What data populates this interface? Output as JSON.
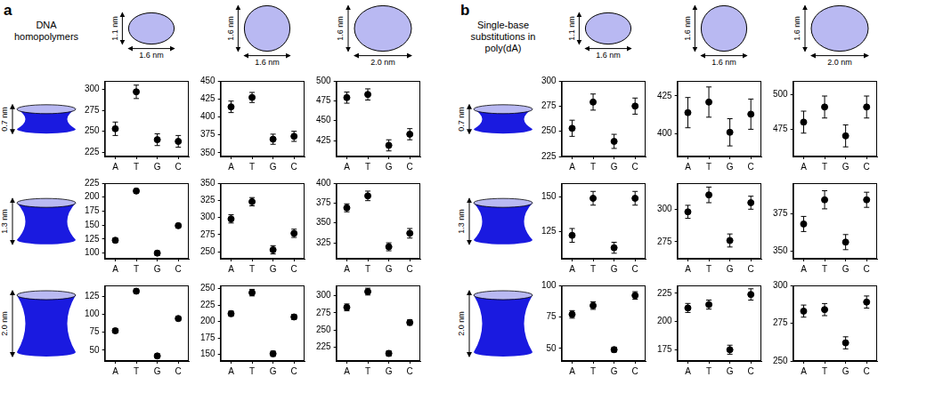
{
  "panels": [
    {
      "label": "a",
      "heading": "DNA homopolymers",
      "columns": [
        {
          "height": "1.1 nm",
          "width": "1.6 nm"
        },
        {
          "height": "1.6 nm",
          "width": "1.6 nm"
        },
        {
          "height": "1.6 nm",
          "width": "2.0 nm"
        }
      ],
      "rows": [
        "0.7 nm",
        "1.3 nm",
        "2.0 nm"
      ]
    },
    {
      "label": "b",
      "heading": "Single-base substitutions in poly(dA)",
      "columns": [
        {
          "height": "1.1 nm",
          "width": "1.6 nm"
        },
        {
          "height": "1.6 nm",
          "width": "1.6 nm"
        },
        {
          "height": "1.6 nm",
          "width": "2.0 nm"
        }
      ],
      "rows": [
        "0.7 nm",
        "1.3 nm",
        "2.0 nm"
      ]
    }
  ],
  "chart_data": [
    {
      "type": "scatter",
      "categories": [
        "A",
        "T",
        "G",
        "C"
      ],
      "values": [
        253,
        297,
        240,
        238
      ],
      "errors": [
        8,
        8,
        7,
        7
      ],
      "ylim": [
        220,
        310
      ],
      "yticks": [
        225,
        250,
        275,
        300
      ],
      "color": "#000000",
      "marker": "circle",
      "grid": false
    },
    {
      "type": "scatter",
      "categories": [
        "A",
        "T",
        "G",
        "C"
      ],
      "values": [
        414,
        427,
        369,
        373
      ],
      "errors": [
        8,
        7,
        7,
        7
      ],
      "ylim": [
        345,
        450
      ],
      "yticks": [
        350,
        375,
        400,
        425,
        450
      ],
      "color": "#000000",
      "marker": "circle",
      "grid": false
    },
    {
      "type": "scatter",
      "categories": [
        "A",
        "T",
        "G",
        "C"
      ],
      "values": [
        479,
        483,
        419,
        433
      ],
      "errors": [
        7,
        7,
        7,
        7
      ],
      "ylim": [
        405,
        500
      ],
      "yticks": [
        425,
        450,
        475,
        500
      ],
      "color": "#000000",
      "marker": "circle",
      "grid": false
    },
    {
      "type": "scatter",
      "categories": [
        "A",
        "T",
        "G",
        "C"
      ],
      "values": [
        123,
        211,
        100,
        149
      ],
      "errors": [
        4,
        4,
        4,
        4
      ],
      "ylim": [
        90,
        225
      ],
      "yticks": [
        100,
        125,
        150,
        175,
        200,
        225
      ],
      "color": "#000000",
      "marker": "circle",
      "grid": false
    },
    {
      "type": "scatter",
      "categories": [
        "A",
        "T",
        "G",
        "C"
      ],
      "values": [
        298,
        323,
        253,
        277
      ],
      "errors": [
        6,
        6,
        6,
        6
      ],
      "ylim": [
        240,
        350
      ],
      "yticks": [
        250,
        275,
        300,
        325,
        350
      ],
      "color": "#000000",
      "marker": "circle",
      "grid": false
    },
    {
      "type": "scatter",
      "categories": [
        "A",
        "T",
        "G",
        "C"
      ],
      "values": [
        369,
        384,
        320,
        337
      ],
      "errors": [
        5,
        6,
        5,
        6
      ],
      "ylim": [
        305,
        400
      ],
      "yticks": [
        325,
        350,
        375,
        400
      ],
      "color": "#000000",
      "marker": "circle",
      "grid": false
    },
    {
      "type": "scatter",
      "categories": [
        "A",
        "T",
        "G",
        "C"
      ],
      "values": [
        77,
        132,
        42,
        94
      ],
      "errors": [
        3,
        3,
        3,
        3
      ],
      "ylim": [
        35,
        140
      ],
      "yticks": [
        50,
        75,
        100,
        125
      ],
      "color": "#000000",
      "marker": "circle",
      "grid": false
    },
    {
      "type": "scatter",
      "categories": [
        "A",
        "T",
        "G",
        "C"
      ],
      "values": [
        212,
        244,
        151,
        207
      ],
      "errors": [
        4,
        5,
        4,
        4
      ],
      "ylim": [
        140,
        255
      ],
      "yticks": [
        150,
        175,
        200,
        225,
        250
      ],
      "color": "#000000",
      "marker": "circle",
      "grid": false
    },
    {
      "type": "scatter",
      "categories": [
        "A",
        "T",
        "G",
        "C"
      ],
      "values": [
        283,
        306,
        216,
        261
      ],
      "errors": [
        5,
        5,
        4,
        4
      ],
      "ylim": [
        205,
        315
      ],
      "yticks": [
        225,
        250,
        275,
        300
      ],
      "color": "#000000",
      "marker": "circle",
      "grid": false
    },
    {
      "type": "scatter",
      "categories": [
        "A",
        "T",
        "G",
        "C"
      ],
      "values": [
        253,
        279,
        240,
        275
      ],
      "errors": [
        8,
        8,
        7,
        8
      ],
      "ylim": [
        225,
        300
      ],
      "yticks": [
        225,
        250,
        275,
        300
      ],
      "color": "#000000",
      "marker": "circle",
      "grid": false
    },
    {
      "type": "scatter",
      "categories": [
        "A",
        "T",
        "G",
        "C"
      ],
      "values": [
        414,
        421,
        401,
        413
      ],
      "errors": [
        10,
        10,
        9,
        10
      ],
      "ylim": [
        385,
        435
      ],
      "yticks": [
        400,
        425
      ],
      "color": "#000000",
      "marker": "circle",
      "grid": false
    },
    {
      "type": "scatter",
      "categories": [
        "A",
        "T",
        "G",
        "C"
      ],
      "values": [
        480,
        491,
        470,
        491
      ],
      "errors": [
        8,
        8,
        8,
        8
      ],
      "ylim": [
        455,
        510
      ],
      "yticks": [
        475,
        500
      ],
      "color": "#000000",
      "marker": "circle",
      "grid": false
    },
    {
      "type": "scatter",
      "categories": [
        "A",
        "T",
        "G",
        "C"
      ],
      "values": [
        122,
        149,
        113,
        149
      ],
      "errors": [
        5,
        5,
        4,
        5
      ],
      "ylim": [
        105,
        160
      ],
      "yticks": [
        125,
        150
      ],
      "color": "#000000",
      "marker": "circle",
      "grid": false
    },
    {
      "type": "scatter",
      "categories": [
        "A",
        "T",
        "G",
        "C"
      ],
      "values": [
        298,
        311,
        276,
        305
      ],
      "errors": [
        5,
        6,
        5,
        5
      ],
      "ylim": [
        262,
        320
      ],
      "yticks": [
        275,
        300
      ],
      "color": "#000000",
      "marker": "circle",
      "grid": false
    },
    {
      "type": "scatter",
      "categories": [
        "A",
        "T",
        "G",
        "C"
      ],
      "values": [
        368,
        384,
        356,
        384
      ],
      "errors": [
        5,
        6,
        5,
        5
      ],
      "ylim": [
        345,
        395
      ],
      "yticks": [
        350,
        375
      ],
      "color": "#000000",
      "marker": "circle",
      "grid": false
    },
    {
      "type": "scatter",
      "categories": [
        "A",
        "T",
        "G",
        "C"
      ],
      "values": [
        77,
        84,
        49,
        92
      ],
      "errors": [
        3,
        3,
        2,
        3
      ],
      "ylim": [
        40,
        100
      ],
      "yticks": [
        50,
        75,
        100
      ],
      "color": "#000000",
      "marker": "circle",
      "grid": false
    },
    {
      "type": "scatter",
      "categories": [
        "A",
        "T",
        "G",
        "C"
      ],
      "values": [
        212,
        215,
        175,
        224
      ],
      "errors": [
        4,
        4,
        4,
        5
      ],
      "ylim": [
        165,
        232
      ],
      "yticks": [
        175,
        200,
        225
      ],
      "color": "#000000",
      "marker": "circle",
      "grid": false
    },
    {
      "type": "scatter",
      "categories": [
        "A",
        "T",
        "G",
        "C"
      ],
      "values": [
        283,
        284,
        262,
        289
      ],
      "errors": [
        4,
        4,
        4,
        4
      ],
      "ylim": [
        250,
        300
      ],
      "yticks": [
        250,
        275,
        300
      ],
      "color": "#000000",
      "marker": "circle",
      "grid": false
    }
  ]
}
